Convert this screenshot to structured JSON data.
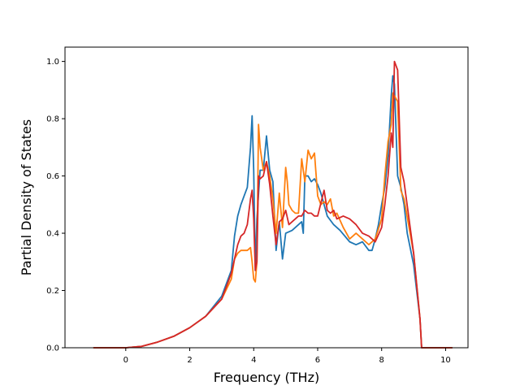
{
  "chart_data": {
    "type": "line",
    "xlabel": "Frequency (THz)",
    "ylabel": "Partial Density of States",
    "xlim": [
      -1.9,
      10.7
    ],
    "ylim": [
      0,
      1.05
    ],
    "xticks": [
      0,
      2,
      4,
      6,
      8,
      10
    ],
    "xtick_labels": [
      "0",
      "2",
      "4",
      "6",
      "8",
      "10"
    ],
    "yticks": [
      0.0,
      0.2,
      0.4,
      0.6,
      0.8,
      1.0
    ],
    "ytick_labels": [
      "0.0",
      "0.2",
      "0.4",
      "0.6",
      "0.8",
      "1.0"
    ],
    "grid": false,
    "legend": "none",
    "series": [
      {
        "color": "#1f77b4",
        "x": [
          -1.0,
          0.0,
          0.5,
          1.0,
          1.5,
          2.0,
          2.5,
          3.0,
          3.3,
          3.4,
          3.5,
          3.6,
          3.7,
          3.8,
          3.9,
          3.95,
          4.0,
          4.05,
          4.1,
          4.2,
          4.3,
          4.4,
          4.5,
          4.6,
          4.7,
          4.8,
          4.9,
          5.0,
          5.2,
          5.5,
          5.55,
          5.6,
          5.7,
          5.8,
          5.9,
          6.0,
          6.1,
          6.2,
          6.3,
          6.5,
          6.7,
          7.0,
          7.2,
          7.4,
          7.6,
          7.7,
          7.8,
          7.9,
          8.0,
          8.1,
          8.2,
          8.3,
          8.35,
          8.4,
          8.5,
          8.6,
          8.7,
          8.8,
          9.0,
          9.2,
          9.25,
          10.2
        ],
        "values": [
          0.0,
          0.0,
          0.005,
          0.02,
          0.04,
          0.07,
          0.11,
          0.18,
          0.27,
          0.39,
          0.46,
          0.5,
          0.53,
          0.56,
          0.7,
          0.81,
          0.62,
          0.27,
          0.45,
          0.62,
          0.62,
          0.74,
          0.62,
          0.58,
          0.34,
          0.44,
          0.31,
          0.4,
          0.41,
          0.44,
          0.4,
          0.6,
          0.6,
          0.58,
          0.59,
          0.57,
          0.54,
          0.5,
          0.46,
          0.43,
          0.41,
          0.37,
          0.36,
          0.37,
          0.34,
          0.34,
          0.38,
          0.43,
          0.5,
          0.56,
          0.67,
          0.88,
          0.95,
          0.92,
          0.6,
          0.56,
          0.5,
          0.4,
          0.29,
          0.1,
          0.0,
          0.0
        ]
      },
      {
        "color": "#ff7f0e",
        "x": [
          -1.0,
          0.0,
          0.5,
          1.0,
          1.5,
          2.0,
          2.5,
          3.0,
          3.3,
          3.4,
          3.5,
          3.6,
          3.7,
          3.8,
          3.9,
          3.95,
          4.0,
          4.05,
          4.1,
          4.15,
          4.2,
          4.3,
          4.4,
          4.5,
          4.6,
          4.7,
          4.8,
          4.9,
          5.0,
          5.05,
          5.1,
          5.2,
          5.3,
          5.4,
          5.5,
          5.6,
          5.7,
          5.8,
          5.9,
          6.0,
          6.1,
          6.2,
          6.3,
          6.4,
          6.5,
          6.6,
          6.8,
          7.0,
          7.2,
          7.4,
          7.6,
          7.8,
          8.0,
          8.1,
          8.2,
          8.3,
          8.35,
          8.4,
          8.5,
          8.6,
          8.7,
          9.0,
          9.2,
          9.25,
          10.2
        ],
        "values": [
          0.0,
          0.0,
          0.005,
          0.02,
          0.04,
          0.07,
          0.11,
          0.17,
          0.24,
          0.31,
          0.33,
          0.34,
          0.34,
          0.34,
          0.35,
          0.3,
          0.24,
          0.23,
          0.3,
          0.78,
          0.7,
          0.62,
          0.65,
          0.6,
          0.52,
          0.4,
          0.54,
          0.42,
          0.63,
          0.58,
          0.5,
          0.48,
          0.47,
          0.47,
          0.66,
          0.58,
          0.69,
          0.66,
          0.68,
          0.53,
          0.5,
          0.51,
          0.5,
          0.52,
          0.46,
          0.47,
          0.42,
          0.38,
          0.4,
          0.38,
          0.36,
          0.38,
          0.45,
          0.6,
          0.72,
          0.78,
          0.89,
          0.88,
          0.86,
          0.55,
          0.52,
          0.33,
          0.1,
          0.0,
          0.0
        ]
      },
      {
        "color": "#d62728",
        "x": [
          -1.0,
          0.0,
          0.5,
          1.0,
          1.5,
          2.0,
          2.5,
          3.0,
          3.3,
          3.5,
          3.6,
          3.7,
          3.8,
          3.9,
          3.95,
          4.0,
          4.05,
          4.1,
          4.15,
          4.2,
          4.3,
          4.4,
          4.5,
          4.6,
          4.7,
          4.8,
          4.9,
          5.0,
          5.1,
          5.2,
          5.3,
          5.4,
          5.5,
          5.6,
          5.7,
          5.8,
          5.9,
          6.0,
          6.2,
          6.3,
          6.4,
          6.5,
          6.6,
          6.8,
          7.0,
          7.2,
          7.4,
          7.6,
          7.8,
          8.0,
          8.1,
          8.2,
          8.3,
          8.35,
          8.4,
          8.5,
          8.6,
          8.7,
          9.0,
          9.2,
          9.25,
          10.2
        ],
        "values": [
          0.0,
          0.0,
          0.005,
          0.02,
          0.04,
          0.07,
          0.11,
          0.17,
          0.26,
          0.36,
          0.39,
          0.4,
          0.43,
          0.52,
          0.55,
          0.45,
          0.27,
          0.3,
          0.6,
          0.59,
          0.6,
          0.65,
          0.57,
          0.46,
          0.36,
          0.44,
          0.45,
          0.48,
          0.43,
          0.44,
          0.45,
          0.46,
          0.46,
          0.48,
          0.47,
          0.47,
          0.46,
          0.46,
          0.55,
          0.48,
          0.47,
          0.48,
          0.45,
          0.46,
          0.45,
          0.43,
          0.4,
          0.39,
          0.37,
          0.42,
          0.5,
          0.6,
          0.75,
          0.7,
          1.0,
          0.97,
          0.63,
          0.58,
          0.33,
          0.1,
          0.0,
          0.0
        ]
      }
    ]
  }
}
